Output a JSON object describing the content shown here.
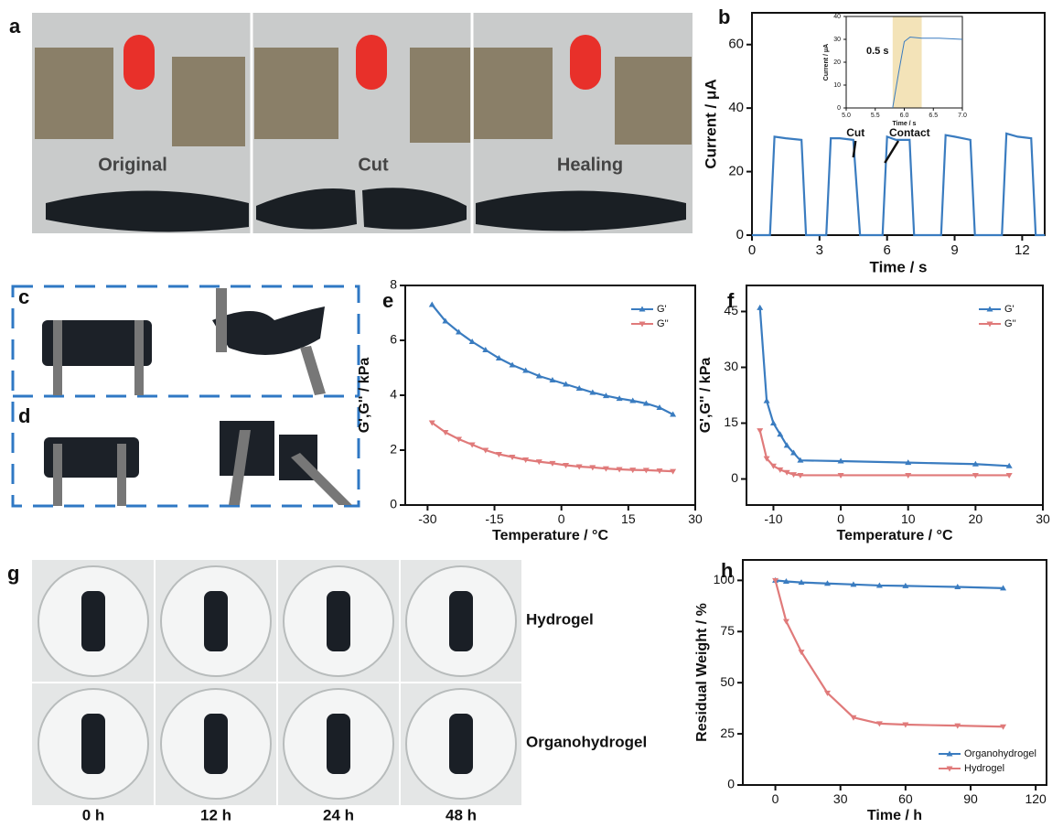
{
  "photos": {
    "a": {
      "panel": "a",
      "labels": [
        "Original",
        "Cut",
        "Healing"
      ]
    },
    "cd": {
      "panels": [
        "c",
        "d"
      ]
    },
    "g": {
      "panel": "g",
      "columns": [
        "0 h",
        "12 h",
        "24 h",
        "48 h"
      ],
      "rows": [
        "Hydrogel",
        "Organohydrogel"
      ]
    }
  },
  "chart_data": [
    {
      "type": "line",
      "panel": "b",
      "x_label": "Time / s",
      "y_label": "Current / μA",
      "xlim": [
        0,
        13
      ],
      "xticks": [
        0,
        3,
        6,
        9,
        12
      ],
      "ylim": [
        0,
        70
      ],
      "yticks": [
        0,
        20,
        40,
        60
      ],
      "annotations": [
        "Cut",
        "Contact"
      ],
      "x": [
        0,
        0.8,
        1.0,
        1.5,
        2.2,
        2.4,
        3.3,
        3.5,
        3.9,
        4.5,
        4.8,
        5.8,
        6.0,
        6.4,
        7.0,
        7.2,
        8.4,
        8.6,
        9.0,
        9.7,
        9.9,
        11.1,
        11.3,
        11.8,
        12.4,
        12.6,
        13
      ],
      "series": [
        {
          "name": null,
          "color": "#3a7cc0",
          "values": [
            0,
            0,
            31,
            30.5,
            30,
            0,
            0,
            30.5,
            30.5,
            30,
            0,
            0,
            31,
            30,
            30,
            0,
            0,
            31.5,
            31,
            30,
            0,
            0,
            32,
            31,
            30.5,
            0,
            0
          ]
        }
      ]
    },
    {
      "type": "line",
      "x_label": "Time / s",
      "y_label": "Current / μA",
      "xlim": [
        5,
        7
      ],
      "xticks": [
        {
          "value": 5,
          "label": "5.0"
        },
        {
          "value": 5.5,
          "label": "5.5"
        },
        {
          "value": 6,
          "label": "6.0"
        },
        {
          "value": 6.5,
          "label": "6.5"
        },
        {
          "value": 7,
          "label": "7.0"
        }
      ],
      "ylim": [
        0,
        40
      ],
      "yticks": [
        0,
        10,
        20,
        30,
        40
      ],
      "highlight": [
        5.8,
        6.3
      ],
      "highlight_color": "#f3e3b8",
      "annotations": [
        "0.5 s"
      ],
      "x": [
        5.8,
        5.9,
        6.0,
        6.1,
        6.3,
        6.6,
        7.0
      ],
      "series": [
        {
          "name": null,
          "color": "#3a7cc0",
          "values": [
            0,
            15,
            29,
            31,
            30.5,
            30.5,
            30
          ]
        }
      ]
    },
    {
      "type": "line",
      "panel": "e",
      "x_label": "Temperature / °C",
      "y_label": "G',G'' / kPa",
      "xlim": [
        -35,
        30
      ],
      "xticks": [
        -30,
        -15,
        0,
        15,
        30
      ],
      "ylim": [
        0,
        8
      ],
      "yticks": [
        0,
        2,
        4,
        6,
        8
      ],
      "legend": "upper right",
      "x": [
        -29,
        -26,
        -23,
        -20,
        -17,
        -14,
        -11,
        -8,
        -5,
        -2,
        1,
        4,
        7,
        10,
        13,
        16,
        19,
        22,
        25
      ],
      "series": [
        {
          "name": "G'",
          "color": "#3a7cc0",
          "marker": "up",
          "values": [
            7.3,
            6.7,
            6.3,
            5.95,
            5.65,
            5.35,
            5.1,
            4.9,
            4.7,
            4.55,
            4.4,
            4.25,
            4.1,
            3.98,
            3.88,
            3.8,
            3.7,
            3.55,
            3.3
          ]
        },
        {
          "name": "G''",
          "color": "#e07a7a",
          "marker": "down",
          "values": [
            3.0,
            2.65,
            2.4,
            2.2,
            2.0,
            1.85,
            1.75,
            1.65,
            1.58,
            1.52,
            1.45,
            1.4,
            1.37,
            1.33,
            1.3,
            1.28,
            1.27,
            1.25,
            1.23
          ]
        }
      ]
    },
    {
      "type": "line",
      "panel": "f",
      "x_label": "Temperature / °C",
      "y_label": "G',G'' / kPa",
      "xlim": [
        -14,
        30
      ],
      "xticks": [
        -10,
        0,
        10,
        20,
        30
      ],
      "ylim": [
        -7,
        52
      ],
      "yticks": [
        0,
        15,
        30,
        45
      ],
      "legend": "upper right",
      "x": [
        -12,
        -11,
        -10,
        -9,
        -8,
        -7,
        -6,
        0,
        10,
        20,
        25
      ],
      "series": [
        {
          "name": "G'",
          "color": "#3a7cc0",
          "marker": "up",
          "values": [
            46,
            21,
            15,
            12,
            9,
            7,
            5,
            4.8,
            4.4,
            4,
            3.5
          ]
        },
        {
          "name": "G''",
          "color": "#e07a7a",
          "marker": "down",
          "values": [
            13,
            5.5,
            3.5,
            2.5,
            1.8,
            1.2,
            1,
            1,
            1,
            1,
            1
          ]
        }
      ]
    },
    {
      "type": "line",
      "panel": "h",
      "x_label": "Time / h",
      "y_label": "Residual Weight / %",
      "xlim": [
        -15,
        125
      ],
      "xticks": [
        0,
        30,
        60,
        90,
        120
      ],
      "ylim": [
        0,
        110
      ],
      "yticks": [
        0,
        25,
        50,
        75,
        100
      ],
      "legend": "lower right",
      "x": [
        0,
        5,
        12,
        24,
        36,
        48,
        60,
        84,
        105
      ],
      "series": [
        {
          "name": "Organohydrogel",
          "color": "#3a7cc0",
          "marker": "up",
          "values": [
            100,
            99.5,
            99,
            98.5,
            98,
            97.5,
            97.3,
            96.8,
            96.2
          ]
        },
        {
          "name": "Hydrogel",
          "color": "#e07a7a",
          "marker": "down",
          "values": [
            100,
            80,
            65,
            45,
            33,
            30,
            29.5,
            29,
            28.5
          ]
        }
      ]
    }
  ]
}
